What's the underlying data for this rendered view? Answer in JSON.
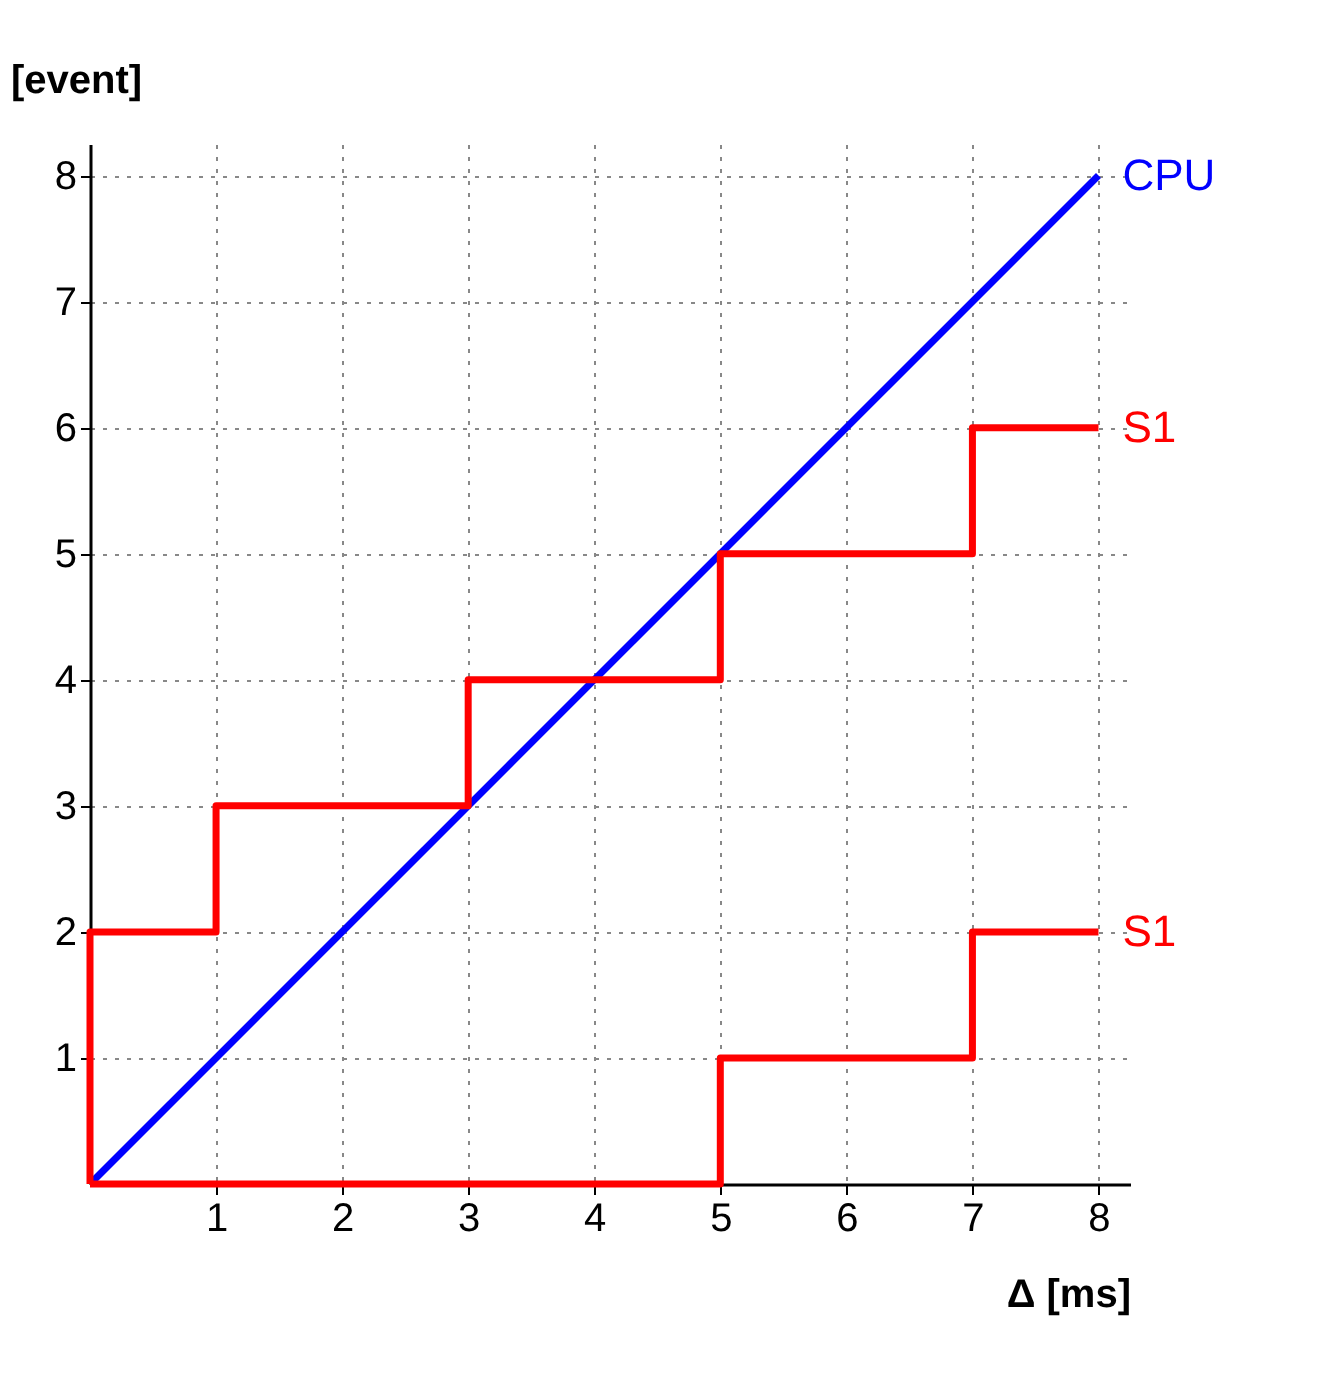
{
  "chart_data": {
    "type": "line",
    "xlabel": "Δ [ms]",
    "ylabel": "[event]",
    "xlim": [
      0,
      8.25
    ],
    "ylim": [
      0,
      8.25
    ],
    "xticks": [
      1,
      2,
      3,
      4,
      5,
      6,
      7,
      8
    ],
    "yticks": [
      1,
      2,
      3,
      4,
      5,
      6,
      7,
      8
    ],
    "grid": true,
    "line_style": "solid",
    "marker": "none",
    "series": [
      {
        "name": "CPU",
        "type": "line",
        "color": "#0000ff",
        "x": [
          0,
          8
        ],
        "values": [
          0,
          8
        ]
      },
      {
        "name": "S1",
        "type": "step",
        "color": "#ff0000",
        "x": [
          0,
          0,
          1,
          3,
          5,
          7,
          8
        ],
        "values": [
          0,
          2,
          3,
          4,
          5,
          6,
          6
        ]
      },
      {
        "name": "S1",
        "type": "step",
        "color": "#ff0000",
        "x": [
          0,
          5,
          7,
          8
        ],
        "values": [
          0,
          1,
          2,
          2
        ]
      }
    ]
  }
}
